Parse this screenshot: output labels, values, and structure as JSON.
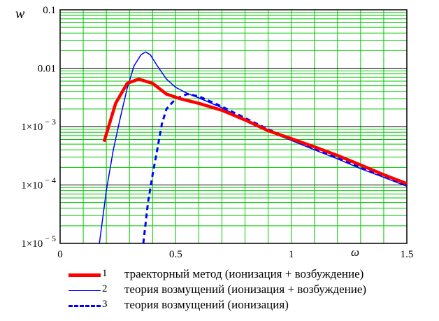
{
  "chart_data": {
    "type": "line",
    "ylabel": "w",
    "xlabel": "ω",
    "xlim": [
      0,
      1.5
    ],
    "ylim": [
      1e-05,
      0.1
    ],
    "yscale": "log",
    "grid": true,
    "grid_color": "#00c800",
    "major_grid_color": "#000000",
    "x_ticks": [
      {
        "value": 0,
        "label": "0"
      },
      {
        "value": 0.5,
        "label": "0.5"
      },
      {
        "value": 1,
        "label": "1"
      },
      {
        "value": 1.5,
        "label": "1.5"
      }
    ],
    "y_ticks": [
      {
        "value": 0.1,
        "label": "0.1"
      },
      {
        "value": 0.01,
        "label": "0.01"
      },
      {
        "value": 0.001,
        "label": "1×10⁻³"
      },
      {
        "value": 0.0001,
        "label": "1×10⁻⁴"
      },
      {
        "value": 1e-05,
        "label": "1×10⁻⁵"
      }
    ],
    "series": [
      {
        "name": "траекторный метод (ионизация + возбуждение)",
        "number": "1",
        "color": "#ff0000",
        "style": "solid-thick",
        "x": [
          0.19,
          0.24,
          0.29,
          0.34,
          0.4,
          0.46,
          0.52,
          0.6,
          0.7,
          0.8,
          0.9,
          1.0,
          1.1,
          1.2,
          1.3,
          1.4,
          1.5
        ],
        "y": [
          0.00055,
          0.0025,
          0.0055,
          0.0065,
          0.0055,
          0.0036,
          0.003,
          0.0025,
          0.0019,
          0.0013,
          0.00085,
          0.00062,
          0.00045,
          0.00032,
          0.00022,
          0.00015,
          0.000105
        ]
      },
      {
        "name": "теория возмущений (ионизация + возбуждение)",
        "number": "2",
        "color": "#0000ff",
        "style": "solid-thin",
        "x": [
          0.17,
          0.2,
          0.23,
          0.26,
          0.29,
          0.32,
          0.35,
          0.37,
          0.39,
          0.42,
          0.46,
          0.5,
          0.55,
          0.6,
          0.7,
          0.8,
          0.9,
          1.0,
          1.1,
          1.2,
          1.3,
          1.4,
          1.5
        ],
        "y": [
          1e-05,
          8e-05,
          0.0004,
          0.0014,
          0.0045,
          0.011,
          0.017,
          0.019,
          0.017,
          0.011,
          0.0065,
          0.0047,
          0.0037,
          0.0031,
          0.0021,
          0.0013,
          0.00083,
          0.00058,
          0.0004,
          0.00028,
          0.00019,
          0.000135,
          9.5e-05
        ]
      },
      {
        "name": "теория возмущений (ионизация)",
        "number": "3",
        "color": "#0000ff",
        "style": "dashed",
        "x": [
          0.36,
          0.38,
          0.4,
          0.42,
          0.44,
          0.46,
          0.5,
          0.55,
          0.6,
          0.7,
          0.8,
          0.9,
          1.0,
          1.1,
          1.2,
          1.3,
          1.4,
          1.5
        ],
        "y": [
          1e-05,
          5e-05,
          0.00015,
          0.0004,
          0.0011,
          0.002,
          0.003,
          0.0036,
          0.0033,
          0.0022,
          0.0014,
          0.0009,
          0.0006,
          0.00042,
          0.00029,
          0.0002,
          0.00014,
          0.0001
        ]
      }
    ]
  }
}
